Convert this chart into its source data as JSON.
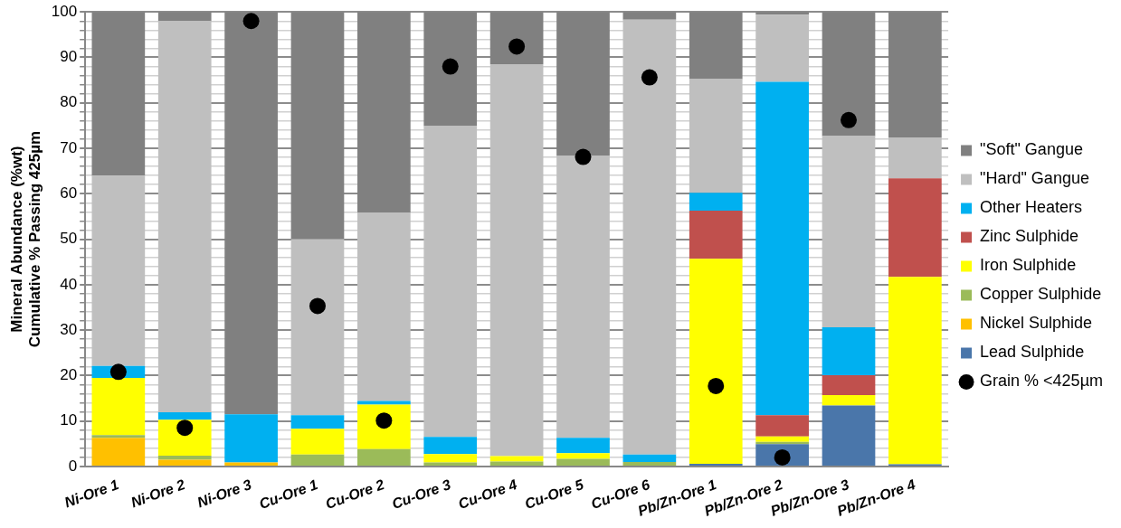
{
  "chart_data": {
    "type": "bar",
    "stacked": true,
    "ylabel": "Mineral Abundance (%wt)\nCumulative % Passing 425µm",
    "categories": [
      "Ni-Ore 1",
      "Ni-Ore 2",
      "Ni-Ore 3",
      "Cu-Ore 1",
      "Cu-Ore 2",
      "Cu-Ore 3",
      "Cu-Ore 4",
      "Cu-Ore 5",
      "Cu-Ore 6",
      "Pb/Zn-Ore 1",
      "Pb/Zn-Ore 2",
      "Pb/Zn-Ore 3",
      "Pb/Zn-Ore 4"
    ],
    "series": [
      {
        "name": "Lead Sulphide",
        "color": "#4a76aa",
        "values": [
          0,
          0,
          0,
          0,
          0,
          0,
          0,
          0,
          0,
          0.6,
          4.9,
          13.4,
          0.5
        ]
      },
      {
        "name": "Nickel Sulphide",
        "color": "#ffc000",
        "values": [
          6.3,
          1.5,
          0.9,
          0,
          0,
          0,
          0,
          0,
          0,
          0,
          0,
          0,
          0
        ]
      },
      {
        "name": "Copper Sulphide",
        "color": "#9bbb59",
        "values": [
          0.6,
          0.9,
          0,
          2.6,
          3.8,
          0.9,
          1.1,
          1.7,
          1.0,
          0,
          0.5,
          0,
          0
        ]
      },
      {
        "name": "Iron Sulphide",
        "color": "#ffff00",
        "values": [
          12.6,
          7.9,
          0,
          5.7,
          9.8,
          1.8,
          1.2,
          1.2,
          0,
          45.1,
          1.2,
          2.3,
          41.2
        ]
      },
      {
        "name": "Zinc Sulphide",
        "color": "#c0504d",
        "values": [
          0,
          0,
          0,
          0,
          0,
          0,
          0,
          0,
          0,
          10.6,
          4.7,
          4.4,
          21.7
        ]
      },
      {
        "name": "Other Heaters",
        "color": "#00b0f0",
        "values": [
          2.6,
          1.6,
          10.6,
          3.0,
          0.8,
          3.8,
          0,
          3.4,
          1.6,
          3.9,
          73.3,
          10.5,
          0
        ]
      },
      {
        "name": "\"Hard\" Gangue",
        "color": "#bfbfbf",
        "values": [
          41.9,
          86.1,
          0,
          38.7,
          41.5,
          68.4,
          86.2,
          62.0,
          95.7,
          25.0,
          14.8,
          42.1,
          8.9
        ]
      },
      {
        "name": "\"Soft\" Gangue",
        "color": "#808080",
        "values": [
          36.0,
          2.0,
          88.5,
          50.0,
          44.1,
          25.1,
          11.5,
          31.7,
          1.7,
          14.8,
          0.6,
          27.3,
          27.7
        ]
      },
      {
        "name": "Grain % <425µm",
        "type": "scatter",
        "marker": "circle",
        "color": "#000000",
        "x": [
          "Ni-Ore 1",
          "Ni-Ore 2",
          "Ni-Ore 3",
          "Cu-Ore 1",
          "Cu-Ore 2",
          "Cu-Ore 3",
          "Cu-Ore 4",
          "Cu-Ore 5",
          "Cu-Ore 6",
          "Pb/Zn-Ore 1",
          "Pb/Zn-Ore 2",
          "Pb/Zn-Ore 3"
        ],
        "values": [
          20.8,
          8.5,
          98.0,
          35.3,
          10.1,
          88.0,
          92.4,
          68.1,
          85.6,
          17.7,
          2.0,
          76.2
        ]
      }
    ],
    "ylim": [
      0,
      100
    ],
    "yticks": [
      0,
      {
        "value": 2,
        "label": null
      },
      {
        "value": 4,
        "label": null
      },
      {
        "value": 6,
        "label": null
      },
      {
        "value": 8,
        "label": null
      },
      10,
      {
        "value": 12,
        "label": null
      },
      {
        "value": 14,
        "label": null
      },
      {
        "value": 16,
        "label": null
      },
      {
        "value": 18,
        "label": null
      },
      20,
      {
        "value": 22,
        "label": null
      },
      {
        "value": 24,
        "label": null
      },
      {
        "value": 26,
        "label": null
      },
      {
        "value": 28,
        "label": null
      },
      30,
      {
        "value": 32,
        "label": null
      },
      {
        "value": 34,
        "label": null
      },
      {
        "value": 36,
        "label": null
      },
      {
        "value": 38,
        "label": null
      },
      40,
      {
        "value": 42,
        "label": null
      },
      {
        "value": 44,
        "label": null
      },
      {
        "value": 46,
        "label": null
      },
      {
        "value": 48,
        "label": null
      },
      50,
      {
        "value": 52,
        "label": null
      },
      {
        "value": 54,
        "label": null
      },
      {
        "value": 56,
        "label": null
      },
      {
        "value": 58,
        "label": null
      },
      60,
      {
        "value": 62,
        "label": null
      },
      {
        "value": 64,
        "label": null
      },
      {
        "value": 66,
        "label": null
      },
      {
        "value": 68,
        "label": null
      },
      70,
      {
        "value": 72,
        "label": null
      },
      {
        "value": 74,
        "label": null
      },
      {
        "value": 76,
        "label": null
      },
      {
        "value": 78,
        "label": null
      },
      80,
      {
        "value": 82,
        "label": null
      },
      {
        "value": 84,
        "label": null
      },
      {
        "value": 86,
        "label": null
      },
      {
        "value": 88,
        "label": null
      },
      90,
      {
        "value": 92,
        "label": null
      },
      {
        "value": 94,
        "label": null
      },
      {
        "value": 96,
        "label": null
      },
      {
        "value": 98,
        "label": null
      },
      100
    ],
    "grid": "y",
    "legend": "right"
  }
}
